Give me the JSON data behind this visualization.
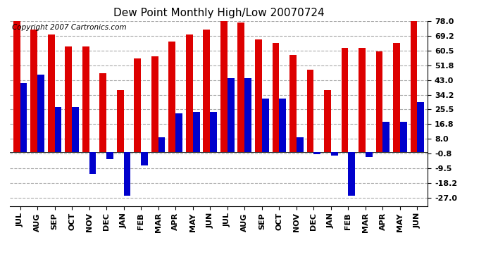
{
  "title": "Dew Point Monthly High/Low 20070724",
  "copyright": "Copyright 2007 Cartronics.com",
  "months": [
    "JUL",
    "AUG",
    "SEP",
    "OCT",
    "NOV",
    "DEC",
    "JAN",
    "FEB",
    "MAR",
    "APR",
    "MAY",
    "JUN",
    "JUL",
    "AUG",
    "SEP",
    "OCT",
    "NOV",
    "DEC",
    "JAN",
    "FEB",
    "MAR",
    "APR",
    "MAY",
    "JUN"
  ],
  "highs": [
    78,
    73,
    70,
    63,
    63,
    47,
    37,
    56,
    57,
    66,
    70,
    73,
    78,
    77,
    67,
    65,
    58,
    49,
    37,
    62,
    62,
    60,
    65,
    78
  ],
  "lows": [
    41,
    46,
    27,
    27,
    -13,
    -4,
    -26,
    -8,
    9,
    23,
    24,
    24,
    44,
    44,
    32,
    32,
    9,
    -1,
    -2,
    -26,
    -3,
    18,
    18,
    30
  ],
  "high_color": "#dd0000",
  "low_color": "#0000cc",
  "background_color": "#ffffff",
  "grid_color": "#aaaaaa",
  "yticks": [
    -27.0,
    -18.2,
    -9.5,
    -0.8,
    8.0,
    16.8,
    25.5,
    34.2,
    43.0,
    51.8,
    60.5,
    69.2,
    78.0
  ],
  "ylim": [
    -32.0,
    78.0
  ],
  "bar_width": 0.4,
  "title_fontsize": 11,
  "tick_fontsize": 8,
  "copyright_fontsize": 7.5
}
